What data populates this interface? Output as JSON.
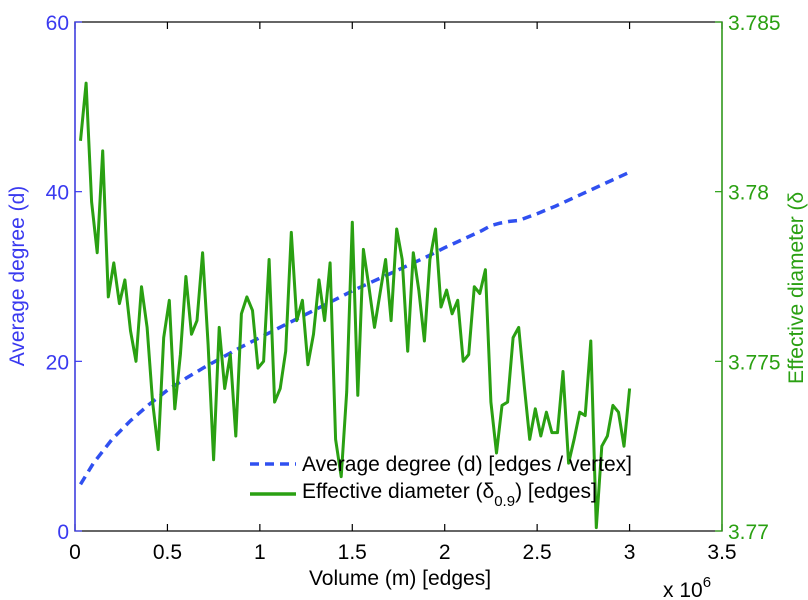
{
  "chart_data": {
    "type": "line",
    "title": "",
    "xlabel": "Volume (m) [edges]",
    "x_multiplier_label": "x 10",
    "x_multiplier_exponent": "6",
    "xlim": [
      0,
      3.5
    ],
    "x_ticks": [
      "0",
      "0.5",
      "1",
      "1.5",
      "2",
      "2.5",
      "3",
      "3.5"
    ],
    "y_left": {
      "label": "Average degree (d)",
      "lim": [
        0,
        60
      ],
      "ticks": [
        "0",
        "20",
        "40",
        "60"
      ],
      "color": "#3a3af0"
    },
    "y_right": {
      "label": "Effective diameter (δ",
      "lim": [
        3.77,
        3.785
      ],
      "ticks": [
        "3.77",
        "3.775",
        "3.78",
        "3.785"
      ],
      "color": "#2aa012"
    },
    "grid": false,
    "legend_placement": "bottom-right",
    "legend": {
      "entry1": "Average degree (d) [edges / vertex]",
      "entry2_pre": "Effective diameter (δ",
      "entry2_sub": "0.9",
      "entry2_post": ") [edges]"
    },
    "series": [
      {
        "name": "Average degree (d) [edges / vertex]",
        "axis": "left",
        "style": "dashed",
        "color": "#3050f0",
        "x": [
          0.03,
          0.1,
          0.2,
          0.3,
          0.4,
          0.5,
          0.6,
          0.7,
          0.8,
          0.9,
          1.0,
          1.1,
          1.2,
          1.3,
          1.4,
          1.5,
          1.6,
          1.7,
          1.8,
          1.9,
          2.0,
          2.1,
          2.2,
          2.25,
          2.3,
          2.35,
          2.4,
          2.5,
          2.6,
          2.7,
          2.8,
          2.9,
          3.0
        ],
        "y": [
          5.5,
          8.0,
          10.8,
          13.0,
          14.9,
          16.6,
          18.0,
          19.3,
          20.5,
          21.7,
          22.8,
          23.9,
          25.0,
          26.1,
          27.2,
          28.3,
          29.3,
          30.3,
          31.3,
          32.3,
          33.4,
          34.4,
          35.4,
          36.0,
          36.3,
          36.5,
          36.6,
          37.4,
          38.3,
          39.3,
          40.3,
          41.3,
          42.3
        ]
      },
      {
        "name": "Effective diameter (δ0.9) [edges]",
        "axis": "right",
        "style": "solid",
        "color": "#2aa012",
        "x": [
          0.03,
          0.06,
          0.09,
          0.12,
          0.15,
          0.18,
          0.21,
          0.24,
          0.27,
          0.3,
          0.33,
          0.36,
          0.39,
          0.42,
          0.45,
          0.48,
          0.51,
          0.54,
          0.57,
          0.6,
          0.63,
          0.66,
          0.69,
          0.72,
          0.75,
          0.78,
          0.81,
          0.84,
          0.87,
          0.9,
          0.93,
          0.96,
          0.99,
          1.02,
          1.05,
          1.08,
          1.11,
          1.14,
          1.17,
          1.2,
          1.23,
          1.26,
          1.29,
          1.32,
          1.35,
          1.38,
          1.41,
          1.44,
          1.47,
          1.5,
          1.53,
          1.56,
          1.59,
          1.62,
          1.65,
          1.68,
          1.71,
          1.74,
          1.77,
          1.8,
          1.83,
          1.86,
          1.89,
          1.92,
          1.95,
          1.98,
          2.01,
          2.04,
          2.07,
          2.1,
          2.13,
          2.16,
          2.19,
          2.22,
          2.25,
          2.28,
          2.31,
          2.34,
          2.37,
          2.4,
          2.43,
          2.46,
          2.49,
          2.52,
          2.55,
          2.58,
          2.61,
          2.64,
          2.67,
          2.7,
          2.73,
          2.76,
          2.79,
          2.82,
          2.85,
          2.88,
          2.91,
          2.94,
          2.97,
          3.0
        ],
        "y": [
          3.7815,
          3.7832,
          3.7797,
          3.7782,
          3.7812,
          3.7769,
          3.7779,
          3.7767,
          3.7774,
          3.7759,
          3.775,
          3.7772,
          3.776,
          3.7738,
          3.7724,
          3.7757,
          3.7768,
          3.7736,
          3.7752,
          3.7775,
          3.7758,
          3.7762,
          3.7782,
          3.7755,
          3.7721,
          3.776,
          3.7742,
          3.7752,
          3.7728,
          3.7764,
          3.7769,
          3.7765,
          3.7748,
          3.775,
          3.778,
          3.7738,
          3.7742,
          3.7753,
          3.7788,
          3.7762,
          3.7768,
          3.7749,
          3.7758,
          3.7774,
          3.7762,
          3.7779,
          3.7727,
          3.7716,
          3.7741,
          3.7791,
          3.774,
          3.7783,
          3.7772,
          3.776,
          3.777,
          3.778,
          3.7762,
          3.7789,
          3.778,
          3.7753,
          3.7782,
          3.7771,
          3.7756,
          3.778,
          3.7789,
          3.7766,
          3.7771,
          3.7764,
          3.7768,
          3.775,
          3.7752,
          3.7772,
          3.777,
          3.7777,
          3.7738,
          3.7723,
          3.7737,
          3.7738,
          3.7757,
          3.776,
          3.7743,
          3.7727,
          3.7736,
          3.7728,
          3.7735,
          3.7729,
          3.7729,
          3.7747,
          3.772,
          3.7727,
          3.7735,
          3.7734,
          3.7756,
          3.7701,
          3.7725,
          3.7728,
          3.7737,
          3.7735,
          3.7725,
          3.7742
        ]
      }
    ]
  }
}
